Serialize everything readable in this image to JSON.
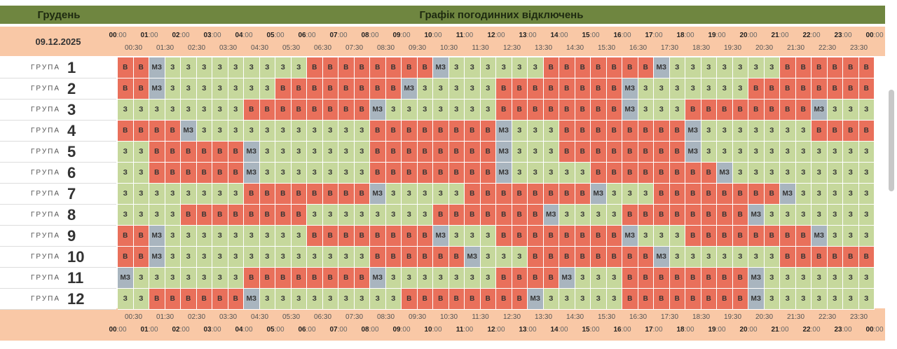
{
  "header": {
    "month": "Грудень",
    "title": "Графік погодинних відключень",
    "date": "09.12.2025"
  },
  "hours": [
    "00:00",
    "01:00",
    "02:00",
    "03:00",
    "04:00",
    "05:00",
    "06:00",
    "07:00",
    "08:00",
    "09:00",
    "10:00",
    "11:00",
    "12:00",
    "13:00",
    "14:00",
    "15:00",
    "16:00",
    "17:00",
    "18:00",
    "19:00",
    "20:00",
    "21:00",
    "22:00",
    "23:00",
    "00:00"
  ],
  "half_hours": [
    "00:30",
    "01:30",
    "02:30",
    "03:30",
    "04:30",
    "05:30",
    "06:30",
    "07:30",
    "08:30",
    "09:30",
    "10:30",
    "11:30",
    "12:30",
    "13:30",
    "14:30",
    "15:30",
    "16:30",
    "17:30",
    "18:30",
    "19:30",
    "20:30",
    "21:30",
    "22:30",
    "23:30"
  ],
  "group_label": "ГРУПА",
  "colors": {
    "В": "#e9705b",
    "З": "#c6d89c",
    "МЗ": "#a9b5bf"
  },
  "groups": [
    {
      "number": 1,
      "slots": [
        "В",
        "В",
        "МЗ",
        "З",
        "З",
        "З",
        "З",
        "З",
        "З",
        "З",
        "З",
        "З",
        "В",
        "В",
        "В",
        "В",
        "В",
        "В",
        "В",
        "В",
        "МЗ",
        "З",
        "З",
        "З",
        "З",
        "З",
        "З",
        "В",
        "В",
        "В",
        "В",
        "В",
        "В",
        "В",
        "МЗ",
        "З",
        "З",
        "З",
        "З",
        "З",
        "З",
        "З",
        "В",
        "В",
        "В",
        "В",
        "В",
        "В"
      ]
    },
    {
      "number": 2,
      "slots": [
        "В",
        "В",
        "МЗ",
        "З",
        "З",
        "З",
        "З",
        "З",
        "З",
        "З",
        "В",
        "В",
        "В",
        "В",
        "В",
        "В",
        "В",
        "В",
        "МЗ",
        "З",
        "З",
        "З",
        "З",
        "З",
        "В",
        "В",
        "В",
        "В",
        "В",
        "В",
        "В",
        "В",
        "МЗ",
        "З",
        "З",
        "З",
        "З",
        "З",
        "З",
        "З",
        "В",
        "В",
        "В",
        "В",
        "В",
        "В",
        "В",
        "В"
      ]
    },
    {
      "number": 3,
      "slots": [
        "З",
        "З",
        "З",
        "З",
        "З",
        "З",
        "З",
        "З",
        "В",
        "В",
        "В",
        "В",
        "В",
        "В",
        "В",
        "В",
        "МЗ",
        "З",
        "З",
        "З",
        "З",
        "З",
        "З",
        "З",
        "В",
        "В",
        "В",
        "В",
        "В",
        "В",
        "В",
        "В",
        "МЗ",
        "З",
        "З",
        "З",
        "В",
        "В",
        "В",
        "В",
        "В",
        "В",
        "В",
        "В",
        "МЗ",
        "З",
        "З",
        "З"
      ]
    },
    {
      "number": 4,
      "slots": [
        "В",
        "В",
        "В",
        "В",
        "МЗ",
        "З",
        "З",
        "З",
        "З",
        "З",
        "З",
        "З",
        "З",
        "З",
        "З",
        "З",
        "В",
        "В",
        "В",
        "В",
        "В",
        "В",
        "В",
        "В",
        "МЗ",
        "З",
        "З",
        "З",
        "В",
        "В",
        "В",
        "В",
        "В",
        "В",
        "В",
        "В",
        "МЗ",
        "З",
        "З",
        "З",
        "З",
        "З",
        "З",
        "З",
        "В",
        "В",
        "В",
        "В"
      ]
    },
    {
      "number": 5,
      "slots": [
        "З",
        "З",
        "В",
        "В",
        "В",
        "В",
        "В",
        "В",
        "МЗ",
        "З",
        "З",
        "З",
        "З",
        "З",
        "З",
        "З",
        "В",
        "В",
        "В",
        "В",
        "В",
        "В",
        "В",
        "В",
        "МЗ",
        "З",
        "З",
        "З",
        "В",
        "В",
        "В",
        "В",
        "В",
        "В",
        "В",
        "В",
        "МЗ",
        "З",
        "З",
        "З",
        "З",
        "З",
        "З",
        "З",
        "З",
        "З",
        "З",
        "З"
      ]
    },
    {
      "number": 6,
      "slots": [
        "З",
        "З",
        "В",
        "В",
        "В",
        "В",
        "В",
        "В",
        "МЗ",
        "З",
        "З",
        "З",
        "З",
        "З",
        "З",
        "З",
        "В",
        "В",
        "В",
        "В",
        "В",
        "В",
        "В",
        "В",
        "МЗ",
        "З",
        "З",
        "З",
        "З",
        "З",
        "В",
        "В",
        "В",
        "В",
        "В",
        "В",
        "В",
        "В",
        "МЗ",
        "З",
        "З",
        "З",
        "З",
        "З",
        "З",
        "З",
        "З",
        "З"
      ]
    },
    {
      "number": 7,
      "slots": [
        "З",
        "З",
        "З",
        "З",
        "З",
        "З",
        "З",
        "З",
        "В",
        "В",
        "В",
        "В",
        "В",
        "В",
        "В",
        "В",
        "МЗ",
        "З",
        "З",
        "З",
        "З",
        "З",
        "В",
        "В",
        "В",
        "В",
        "В",
        "В",
        "В",
        "В",
        "МЗ",
        "З",
        "З",
        "З",
        "В",
        "В",
        "В",
        "В",
        "В",
        "В",
        "В",
        "В",
        "МЗ",
        "З",
        "З",
        "З",
        "З",
        "З"
      ]
    },
    {
      "number": 8,
      "slots": [
        "З",
        "З",
        "З",
        "З",
        "В",
        "В",
        "В",
        "В",
        "В",
        "В",
        "В",
        "В",
        "З",
        "З",
        "З",
        "З",
        "З",
        "З",
        "З",
        "З",
        "В",
        "В",
        "В",
        "В",
        "В",
        "В",
        "В",
        "МЗ",
        "З",
        "З",
        "З",
        "З",
        "В",
        "В",
        "В",
        "В",
        "В",
        "В",
        "В",
        "В",
        "МЗ",
        "З",
        "З",
        "З",
        "З",
        "З",
        "З",
        "З"
      ]
    },
    {
      "number": 9,
      "slots": [
        "В",
        "В",
        "МЗ",
        "З",
        "З",
        "З",
        "З",
        "З",
        "З",
        "З",
        "З",
        "З",
        "В",
        "В",
        "В",
        "В",
        "В",
        "В",
        "В",
        "В",
        "МЗ",
        "З",
        "З",
        "З",
        "В",
        "В",
        "В",
        "В",
        "В",
        "В",
        "В",
        "В",
        "МЗ",
        "З",
        "З",
        "З",
        "В",
        "В",
        "В",
        "В",
        "В",
        "В",
        "В",
        "В",
        "МЗ",
        "З",
        "З",
        "З"
      ]
    },
    {
      "number": 10,
      "slots": [
        "В",
        "В",
        "МЗ",
        "З",
        "З",
        "З",
        "З",
        "З",
        "З",
        "З",
        "З",
        "З",
        "З",
        "З",
        "З",
        "З",
        "В",
        "В",
        "В",
        "В",
        "В",
        "В",
        "МЗ",
        "З",
        "З",
        "З",
        "В",
        "В",
        "В",
        "В",
        "В",
        "В",
        "В",
        "В",
        "МЗ",
        "З",
        "З",
        "З",
        "З",
        "З",
        "З",
        "З",
        "В",
        "В",
        "В",
        "В",
        "В",
        "В"
      ]
    },
    {
      "number": 11,
      "slots": [
        "МЗ",
        "З",
        "З",
        "З",
        "З",
        "З",
        "З",
        "З",
        "В",
        "В",
        "В",
        "В",
        "В",
        "В",
        "В",
        "В",
        "МЗ",
        "З",
        "З",
        "З",
        "З",
        "З",
        "З",
        "З",
        "В",
        "В",
        "В",
        "В",
        "МЗ",
        "З",
        "З",
        "З",
        "В",
        "В",
        "В",
        "В",
        "В",
        "В",
        "В",
        "В",
        "МЗ",
        "З",
        "З",
        "З",
        "З",
        "З",
        "З",
        "З"
      ]
    },
    {
      "number": 12,
      "slots": [
        "З",
        "З",
        "В",
        "В",
        "В",
        "В",
        "В",
        "В",
        "МЗ",
        "З",
        "З",
        "З",
        "З",
        "З",
        "З",
        "З",
        "З",
        "З",
        "В",
        "В",
        "В",
        "В",
        "В",
        "В",
        "В",
        "В",
        "МЗ",
        "З",
        "З",
        "З",
        "З",
        "З",
        "В",
        "В",
        "В",
        "В",
        "В",
        "В",
        "В",
        "В",
        "МЗ",
        "З",
        "З",
        "З",
        "З",
        "З",
        "З",
        "З"
      ]
    }
  ]
}
